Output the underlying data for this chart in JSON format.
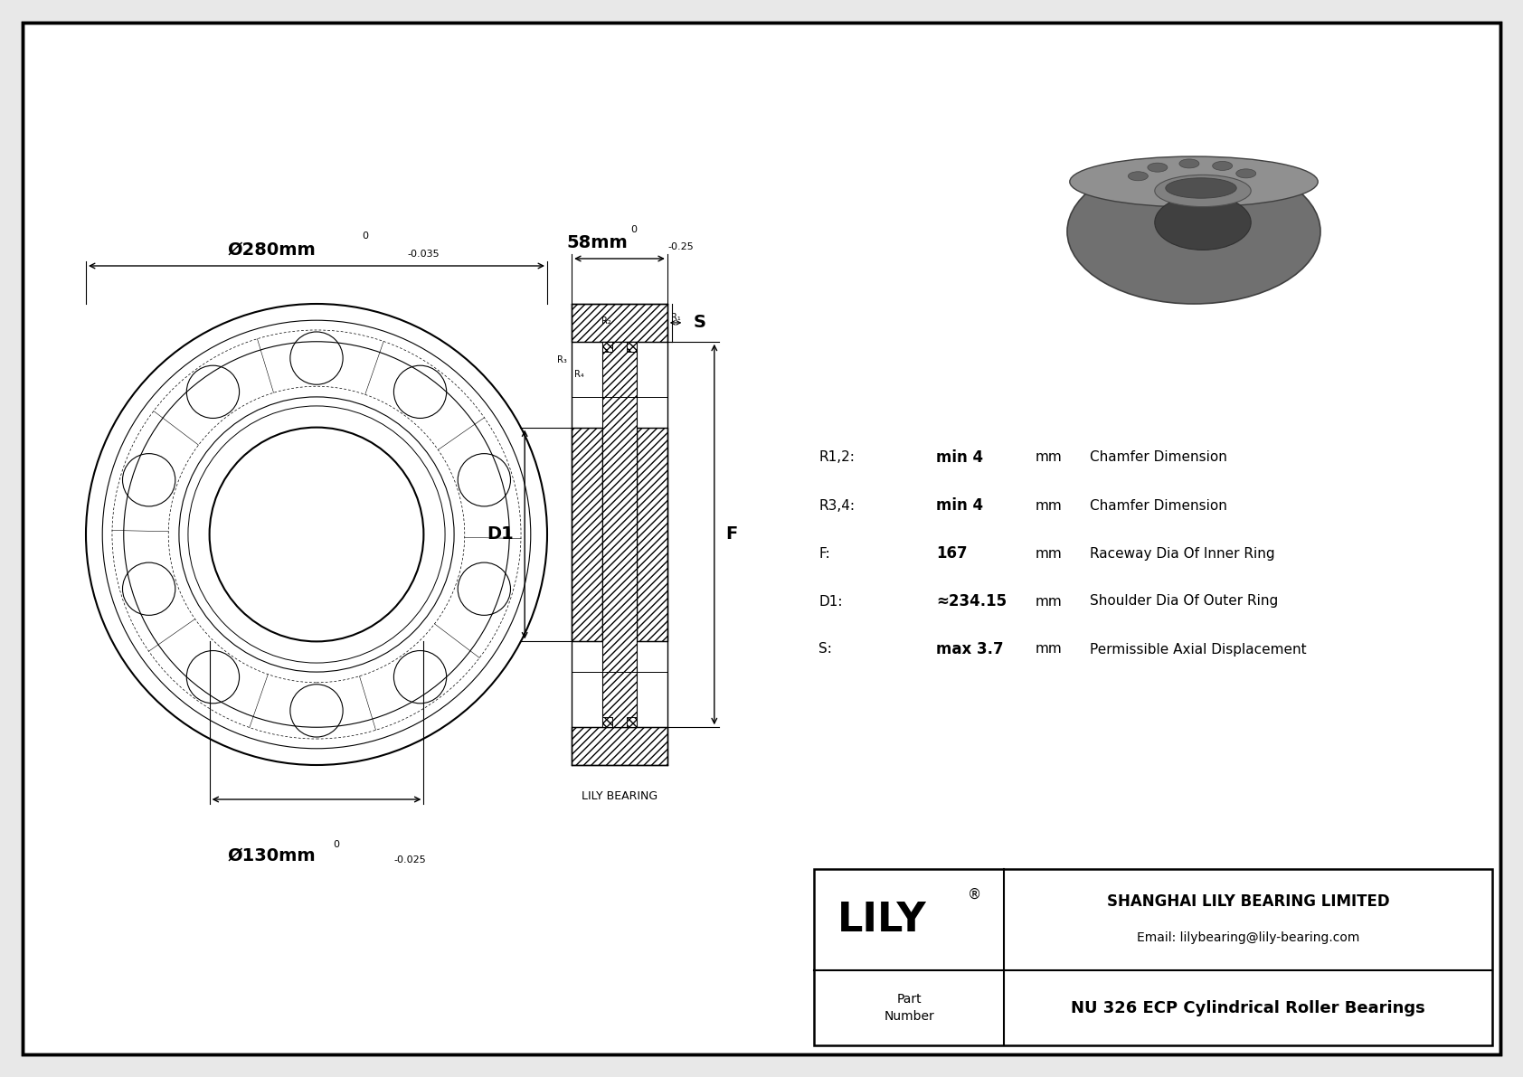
{
  "bg_color": "#e8e8e8",
  "drawing_bg": "#ffffff",
  "company": "SHANGHAI LILY BEARING LIMITED",
  "email": "Email: lilybearing@lily-bearing.com",
  "part_number": "NU 326 ECP Cylindrical Roller Bearings",
  "lily_logo": "LILY",
  "watermark_text": "LILY BEARING",
  "dim_outer_dia": "Ø280mm",
  "dim_outer_tol_top": "0",
  "dim_outer_tol_bot": "-0.035",
  "dim_inner_dia": "Ø130mm",
  "dim_inner_tol_top": "0",
  "dim_inner_tol_bot": "-0.025",
  "dim_width": "58mm",
  "dim_width_tol_top": "0",
  "dim_width_tol_bot": "-0.25",
  "params": [
    {
      "sym": "R1,2:",
      "val": "min 4",
      "unit": "mm",
      "desc": "Chamfer Dimension"
    },
    {
      "sym": "R3,4:",
      "val": "min 4",
      "unit": "mm",
      "desc": "Chamfer Dimension"
    },
    {
      "sym": "F:",
      "val": "167",
      "unit": "mm",
      "desc": "Raceway Dia Of Inner Ring"
    },
    {
      "sym": "D1:",
      "val": "≈234.15",
      "unit": "mm",
      "desc": "Shoulder Dia Of Outer Ring"
    },
    {
      "sym": "S:",
      "val": "max 3.7",
      "unit": "mm",
      "desc": "Permissible Axial Displacement"
    }
  ],
  "line_color": "#000000"
}
